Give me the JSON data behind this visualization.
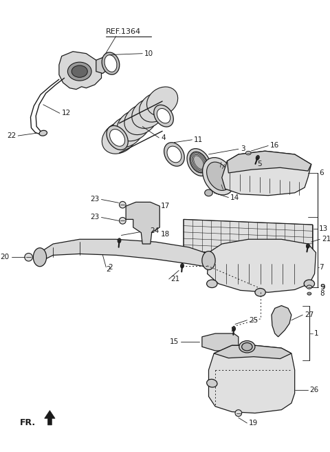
{
  "bg_color": "#ffffff",
  "line_color": "#1a1a1a",
  "fig_width": 4.8,
  "fig_height": 6.56,
  "dpi": 100,
  "ref_text": "REF.1364",
  "fr_text": "FR."
}
